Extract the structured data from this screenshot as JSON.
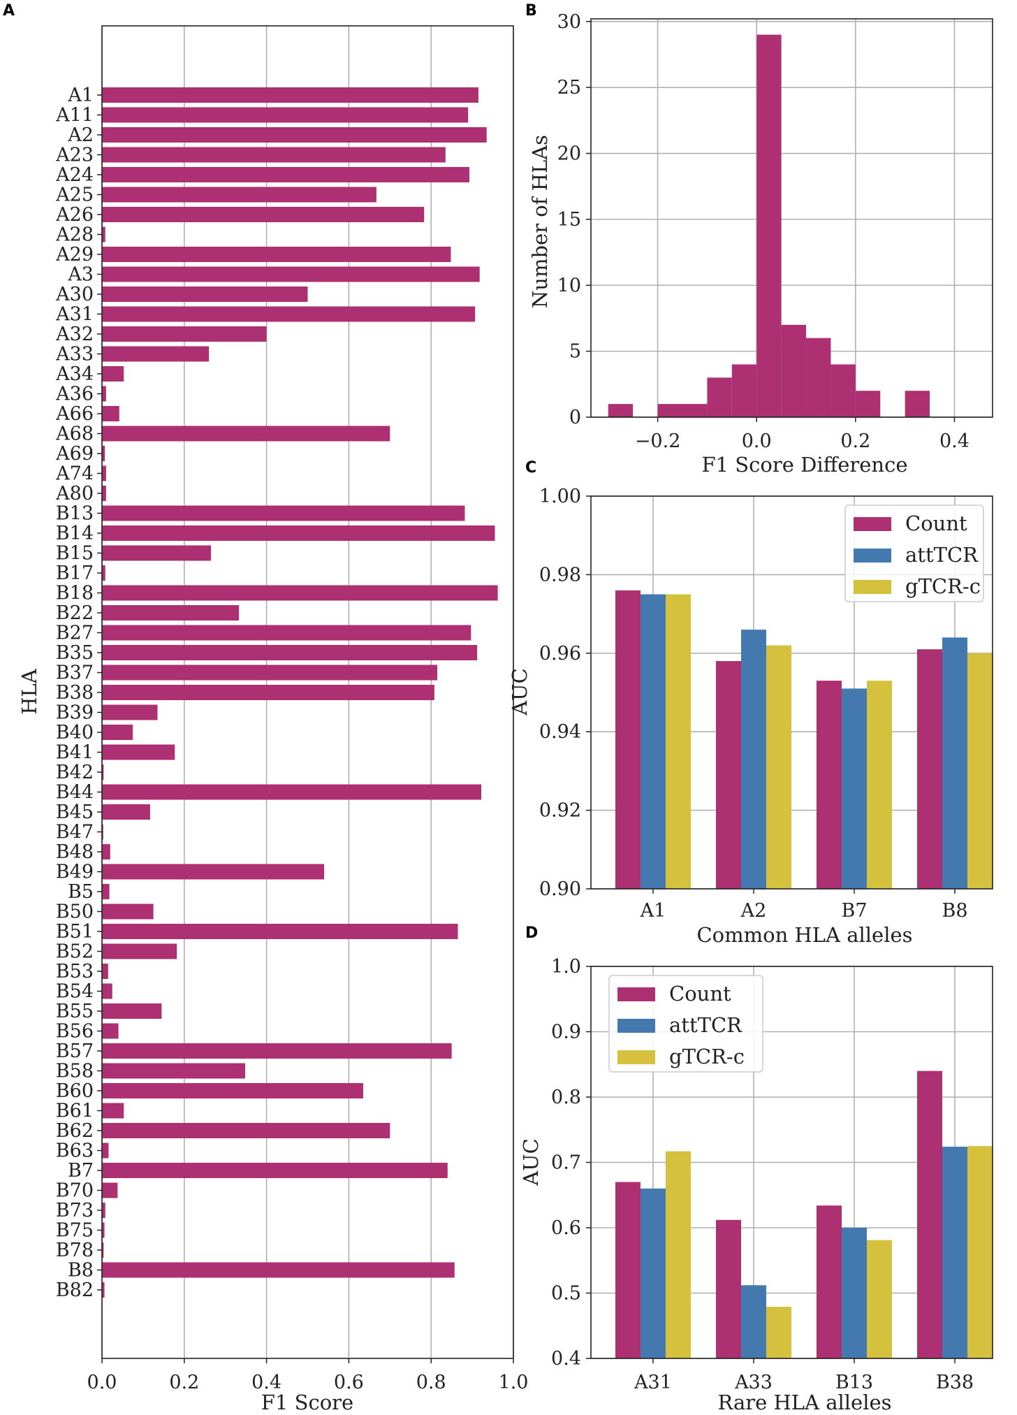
{
  "colors": {
    "count": "#ad3072",
    "attTCR": "#4479b0",
    "gTCRc": "#d6c13f",
    "grid": "#b0b0b0"
  },
  "chart_data": [
    {
      "panel": "A",
      "type": "bar",
      "orientation": "horizontal",
      "title": "",
      "xlabel": "F1 Score",
      "ylabel": "HLA",
      "xlim": [
        0,
        1
      ],
      "xticks": [
        "0.0",
        "0.2",
        "0.4",
        "0.6",
        "0.8",
        "1.0"
      ],
      "grid": true,
      "categories": [
        "A1",
        "A11",
        "A2",
        "A23",
        "A24",
        "A25",
        "A26",
        "A28",
        "A29",
        "A3",
        "A30",
        "A31",
        "A32",
        "A33",
        "A34",
        "A36",
        "A66",
        "A68",
        "A69",
        "A74",
        "A80",
        "B13",
        "B14",
        "B15",
        "B17",
        "B18",
        "B22",
        "B27",
        "B35",
        "B37",
        "B38",
        "B39",
        "B40",
        "B41",
        "B42",
        "B44",
        "B45",
        "B47",
        "B48",
        "B49",
        "B5",
        "B50",
        "B51",
        "B52",
        "B53",
        "B54",
        "B55",
        "B56",
        "B57",
        "B58",
        "B60",
        "B61",
        "B62",
        "B63",
        "B7",
        "B70",
        "B73",
        "B75",
        "B78",
        "B8",
        "B82"
      ],
      "values": [
        0.915,
        0.89,
        0.935,
        0.835,
        0.893,
        0.667,
        0.783,
        0.008,
        0.848,
        0.918,
        0.5,
        0.907,
        0.4,
        0.26,
        0.053,
        0.01,
        0.042,
        0.7,
        0.007,
        0.01,
        0.01,
        0.882,
        0.955,
        0.265,
        0.008,
        0.962,
        0.333,
        0.897,
        0.912,
        0.815,
        0.808,
        0.135,
        0.075,
        0.177,
        0.004,
        0.922,
        0.117,
        0.003,
        0.02,
        0.54,
        0.018,
        0.125,
        0.865,
        0.182,
        0.015,
        0.025,
        0.145,
        0.04,
        0.85,
        0.348,
        0.635,
        0.053,
        0.7,
        0.016,
        0.84,
        0.038,
        0.008,
        0.006,
        0.004,
        0.857,
        0.006
      ]
    },
    {
      "panel": "B",
      "type": "bar",
      "subtype": "histogram",
      "title": "",
      "xlabel": "F1 Score Difference",
      "ylabel": "Number of HLAs",
      "xlim": [
        -0.3,
        0.45
      ],
      "ylim": [
        0,
        30
      ],
      "xticks": [
        "−0.2",
        "0.0",
        "0.2",
        "0.4"
      ],
      "yticks": [
        "0",
        "5",
        "10",
        "15",
        "20",
        "25",
        "30"
      ],
      "grid": true,
      "bins": [
        {
          "x0": -0.3,
          "x1": -0.25,
          "count": 1
        },
        {
          "x0": -0.25,
          "x1": -0.2,
          "count": 0
        },
        {
          "x0": -0.2,
          "x1": -0.1,
          "count": 1
        },
        {
          "x0": -0.1,
          "x1": -0.05,
          "count": 3
        },
        {
          "x0": -0.05,
          "x1": 0.0,
          "count": 4
        },
        {
          "x0": 0.0,
          "x1": 0.05,
          "count": 29
        },
        {
          "x0": 0.05,
          "x1": 0.1,
          "count": 7
        },
        {
          "x0": 0.1,
          "x1": 0.15,
          "count": 6
        },
        {
          "x0": 0.15,
          "x1": 0.2,
          "count": 4
        },
        {
          "x0": 0.2,
          "x1": 0.25,
          "count": 2
        },
        {
          "x0": 0.25,
          "x1": 0.3,
          "count": 0
        },
        {
          "x0": 0.3,
          "x1": 0.35,
          "count": 2
        }
      ]
    },
    {
      "panel": "C",
      "type": "bar",
      "title": "",
      "xlabel": "Common HLA alleles",
      "ylabel": "AUC",
      "ylim": [
        0.9,
        1.0
      ],
      "yticks": [
        "0.90",
        "0.92",
        "0.94",
        "0.96",
        "0.98",
        "1.00"
      ],
      "legend_position": "top-right",
      "grid": true,
      "categories": [
        "A1",
        "A2",
        "B7",
        "B8"
      ],
      "series": [
        {
          "name": "Count",
          "values": [
            0.976,
            0.958,
            0.953,
            0.961
          ]
        },
        {
          "name": "attTCR",
          "values": [
            0.975,
            0.966,
            0.951,
            0.964
          ]
        },
        {
          "name": "gTCR-c",
          "values": [
            0.975,
            0.962,
            0.953,
            0.96
          ]
        }
      ]
    },
    {
      "panel": "D",
      "type": "bar",
      "title": "",
      "xlabel": "Rare HLA alleles",
      "ylabel": "AUC",
      "ylim": [
        0.4,
        1.0
      ],
      "yticks": [
        "0.4",
        "0.5",
        "0.6",
        "0.7",
        "0.8",
        "0.9",
        "1.0"
      ],
      "legend_position": "top-left",
      "grid": true,
      "categories": [
        "A31",
        "A33",
        "B13",
        "B38"
      ],
      "series": [
        {
          "name": "Count",
          "values": [
            0.67,
            0.612,
            0.634,
            0.84
          ]
        },
        {
          "name": "attTCR",
          "values": [
            0.66,
            0.512,
            0.6,
            0.724
          ]
        },
        {
          "name": "gTCR-c",
          "values": [
            0.717,
            0.479,
            0.581,
            0.725
          ]
        }
      ]
    }
  ]
}
